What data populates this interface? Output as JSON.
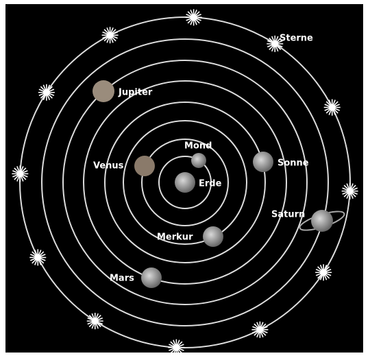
{
  "nodes": [
    {
      "label": "Erde"
    },
    {
      "label": "Mond"
    },
    {
      "label": "Venus"
    },
    {
      "label": "Merkur"
    },
    {
      "label": "Sonne"
    },
    {
      "label": "Mars"
    },
    {
      "label": "Jupiter"
    },
    {
      "label": "Saturn"
    },
    {
      "label": "Sterne"
    }
  ]
}
